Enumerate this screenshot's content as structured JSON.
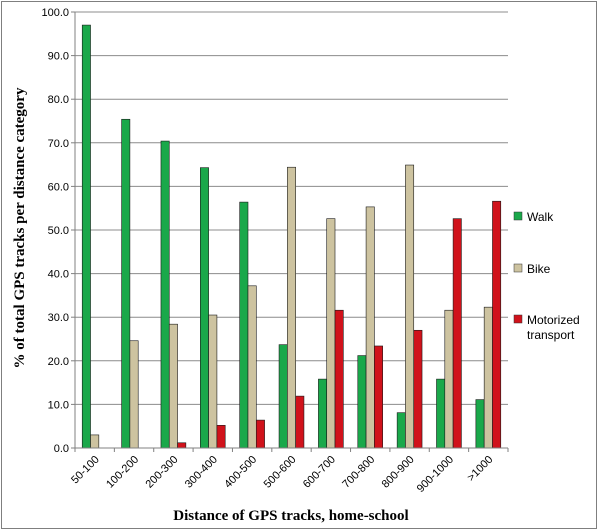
{
  "chart_data": {
    "type": "bar",
    "title": "",
    "xlabel": "Distance of GPS tracks, home-school",
    "ylabel": "% of total GPS tracks per distance category",
    "ylim": [
      0,
      100
    ],
    "yticks": [
      "0.0",
      "10.0",
      "20.0",
      "30.0",
      "40.0",
      "50.0",
      "60.0",
      "70.0",
      "80.0",
      "90.0",
      "100.0"
    ],
    "grid": true,
    "legend_position": "right",
    "categories": [
      "50-100",
      "100-200",
      "200-300",
      "300-400",
      "400-500",
      "500-600",
      "600-700",
      "700-800",
      "800-900",
      "900-1000",
      ">1000"
    ],
    "series": [
      {
        "name": "Walk",
        "color": "#1aa84a",
        "values": [
          97.0,
          75.4,
          70.4,
          64.3,
          56.4,
          23.7,
          15.8,
          21.2,
          8.1,
          15.8,
          11.1
        ]
      },
      {
        "name": "Bike",
        "color": "#cdc3a0",
        "values": [
          3.0,
          24.6,
          28.4,
          30.5,
          37.2,
          64.4,
          52.6,
          55.3,
          64.9,
          31.6,
          32.3
        ]
      },
      {
        "name": "Motorized transport",
        "color": "#d0121b",
        "values": [
          0.0,
          0.0,
          1.2,
          5.2,
          6.4,
          11.9,
          31.6,
          23.4,
          27.0,
          52.6,
          56.6
        ]
      }
    ]
  }
}
